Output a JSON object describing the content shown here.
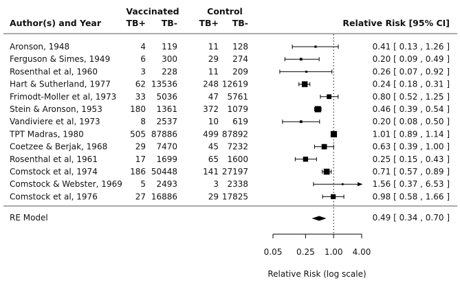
{
  "chart_data": {
    "type": "forest",
    "headers": {
      "study": "Author(s) and Year",
      "group1": "Vaccinated",
      "group2": "Control",
      "tbpos": "TB+",
      "tbneg": "TB-",
      "effect": "Relative Risk [95% CI]"
    },
    "studies": [
      {
        "name": "Aronson, 1948",
        "v_pos": "4",
        "v_neg": "119",
        "c_pos": "11",
        "c_neg": "128",
        "rr": 0.41,
        "lo": 0.13,
        "hi": 1.26,
        "ci_text": "0.41 [ 0.13 , 1.26 ]",
        "weight": 2.3
      },
      {
        "name": "Ferguson & Simes, 1949",
        "v_pos": "6",
        "v_neg": "300",
        "c_pos": "29",
        "c_neg": "274",
        "rr": 0.2,
        "lo": 0.09,
        "hi": 0.49,
        "ci_text": "0.20 [ 0.09 , 0.49 ]",
        "weight": 3.1
      },
      {
        "name": "Rosenthal et al, 1960",
        "v_pos": "3",
        "v_neg": "228",
        "c_pos": "11",
        "c_neg": "209",
        "rr": 0.26,
        "lo": 0.07,
        "hi": 0.92,
        "ci_text": "0.26 [ 0.07 , 0.92 ]",
        "weight": 2.0
      },
      {
        "name": "Hart & Sutherland, 1977",
        "v_pos": "62",
        "v_neg": "13536",
        "c_pos": "248",
        "c_neg": "12619",
        "rr": 0.24,
        "lo": 0.18,
        "hi": 0.31,
        "ci_text": "0.24 [ 0.18 , 0.31 ]",
        "weight": 9.2
      },
      {
        "name": "Frimodt-Moller et al, 1973",
        "v_pos": "33",
        "v_neg": "5036",
        "c_pos": "47",
        "c_neg": "5761",
        "rr": 0.8,
        "lo": 0.52,
        "hi": 1.25,
        "ci_text": "0.80 [ 0.52 , 1.25 ]",
        "weight": 7.1
      },
      {
        "name": "Stein & Aronson, 1953",
        "v_pos": "180",
        "v_neg": "1361",
        "c_pos": "372",
        "c_neg": "1079",
        "rr": 0.46,
        "lo": 0.39,
        "hi": 0.54,
        "ci_text": "0.46 [ 0.39 , 0.54 ]",
        "weight": 10.0
      },
      {
        "name": "Vandiviere et al, 1973",
        "v_pos": "8",
        "v_neg": "2537",
        "c_pos": "10",
        "c_neg": "619",
        "rr": 0.2,
        "lo": 0.08,
        "hi": 0.5,
        "ci_text": "0.20 [ 0.08 , 0.50 ]",
        "weight": 3.1
      },
      {
        "name": "TPT Madras, 1980",
        "v_pos": "505",
        "v_neg": "87886",
        "c_pos": "499",
        "c_neg": "87892",
        "rr": 1.01,
        "lo": 0.89,
        "hi": 1.14,
        "ci_text": "1.01 [ 0.89 , 1.14 ]",
        "weight": 10.2
      },
      {
        "name": "Coetzee & Berjak, 1968",
        "v_pos": "29",
        "v_neg": "7470",
        "c_pos": "45",
        "c_neg": "7232",
        "rr": 0.63,
        "lo": 0.39,
        "hi": 1.0,
        "ci_text": "0.63 [ 0.39 , 1.00 ]",
        "weight": 8.3
      },
      {
        "name": "Rosenthal et al, 1961",
        "v_pos": "17",
        "v_neg": "1699",
        "c_pos": "65",
        "c_neg": "1600",
        "rr": 0.25,
        "lo": 0.15,
        "hi": 0.43,
        "ci_text": "0.25 [ 0.15 , 0.43 ]",
        "weight": 7.8
      },
      {
        "name": "Comstock et al, 1974",
        "v_pos": "186",
        "v_neg": "50448",
        "c_pos": "141",
        "c_neg": "27197",
        "rr": 0.71,
        "lo": 0.57,
        "hi": 0.89,
        "ci_text": "0.71 [ 0.57 , 0.89 ]",
        "weight": 9.6
      },
      {
        "name": "Comstock & Webster, 1969",
        "v_pos": "5",
        "v_neg": "2493",
        "c_pos": "3",
        "c_neg": "2338",
        "rr": 1.56,
        "lo": 0.37,
        "hi": 6.53,
        "ci_text": "1.56 [ 0.37 , 6.53 ]",
        "weight": 1.7,
        "arrow_right": true
      },
      {
        "name": "Comstock et al, 1976",
        "v_pos": "27",
        "v_neg": "16886",
        "c_pos": "29",
        "c_neg": "17825",
        "rr": 0.98,
        "lo": 0.58,
        "hi": 1.66,
        "ci_text": "0.98 [ 0.58 , 1.66 ]",
        "weight": 7.6
      }
    ],
    "summary": {
      "label": "RE Model",
      "rr": 0.49,
      "lo": 0.34,
      "hi": 0.7,
      "ci_text": "0.49 [ 0.34 , 0.70 ]"
    },
    "x_ticks": [
      {
        "value": 0.05,
        "label": "0.05"
      },
      {
        "value": 0.25,
        "label": "0.25"
      },
      {
        "value": 1.0,
        "label": "1.00"
      },
      {
        "value": 4.0,
        "label": "4.00"
      }
    ],
    "xlabel": "Relative Risk (log scale)",
    "x_scale": "log",
    "xlim": [
      0.05,
      4.0
    ],
    "reference_value": 1.0,
    "colors": {
      "ink": "#000000",
      "rule": "#555555"
    }
  }
}
